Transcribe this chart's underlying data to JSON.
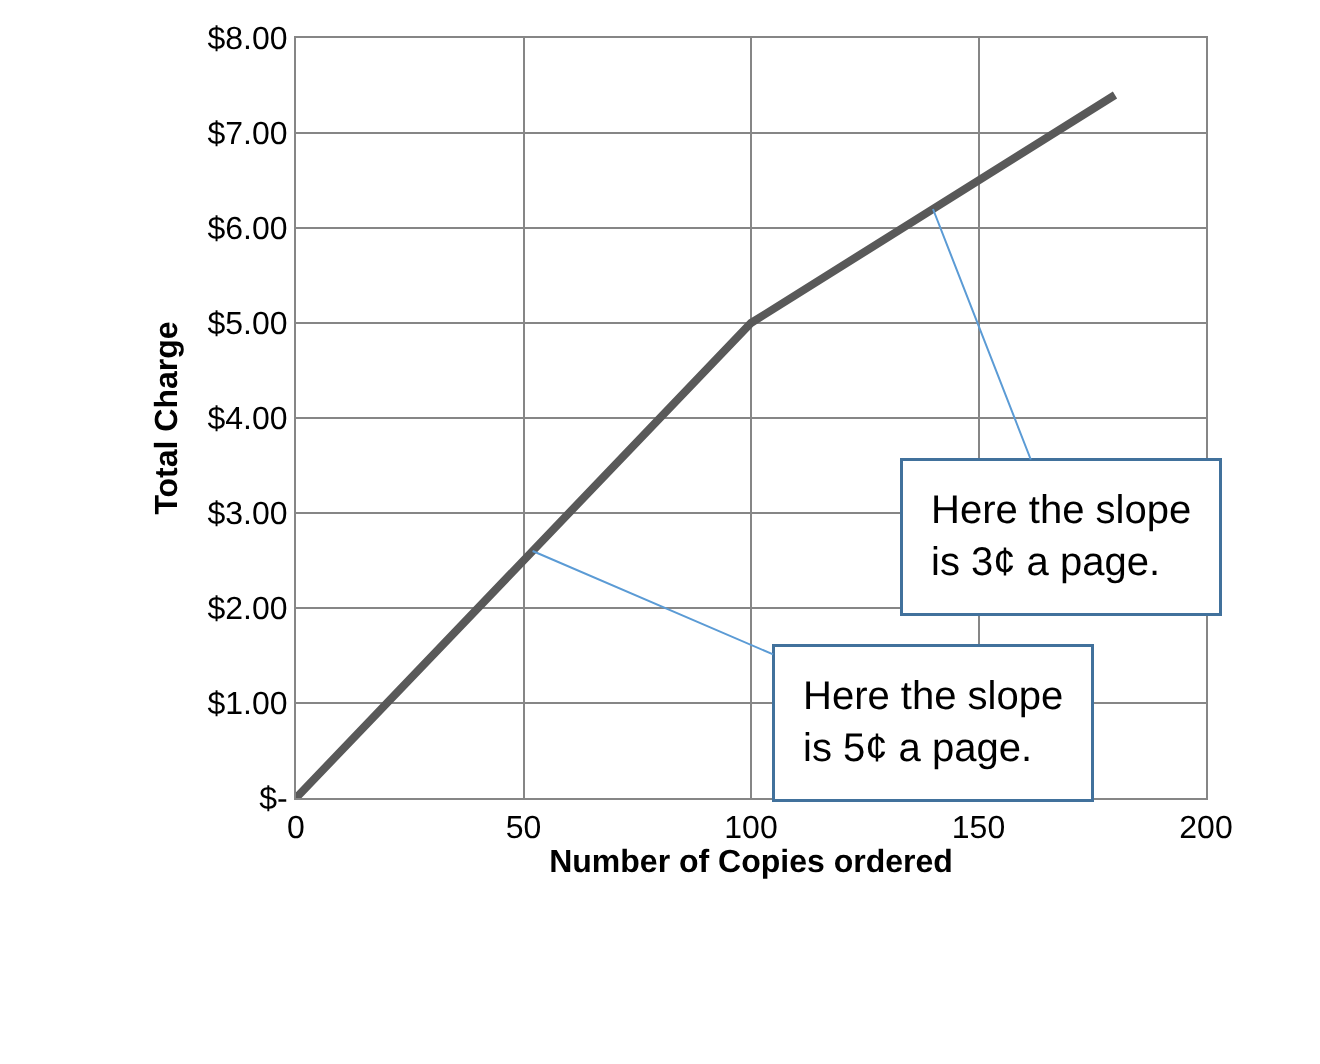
{
  "chart_data": {
    "type": "line",
    "xlabel": "Number of Copies ordered",
    "ylabel": "Total Charge",
    "x": [
      0,
      100,
      180
    ],
    "series": [
      {
        "color": "#595959",
        "values": [
          0,
          5,
          7.4
        ]
      }
    ],
    "xlim": [
      0,
      200
    ],
    "xticks": [
      0,
      50,
      100,
      150,
      200
    ],
    "ylim": [
      0,
      8
    ],
    "yticks": [
      {
        "value": 0,
        "label": "$-"
      },
      {
        "value": 1,
        "label": "$1.00"
      },
      {
        "value": 2,
        "label": "$2.00"
      },
      {
        "value": 3,
        "label": "$3.00"
      },
      {
        "value": 4,
        "label": "$4.00"
      },
      {
        "value": 5,
        "label": "$5.00"
      },
      {
        "value": 6,
        "label": "$6.00"
      },
      {
        "value": 7,
        "label": "$7.00"
      },
      {
        "value": 8,
        "label": "$8.00"
      }
    ],
    "grid": true,
    "legend": false,
    "marker": "none",
    "line_style": "solid",
    "annotations": [
      {
        "text": "Here the slope\nis 3¢ a page.",
        "x": 140,
        "y": 6.2
      },
      {
        "text": "Here the slope\nis 5¢ a page.",
        "x": 52,
        "y": 2.6
      }
    ]
  }
}
